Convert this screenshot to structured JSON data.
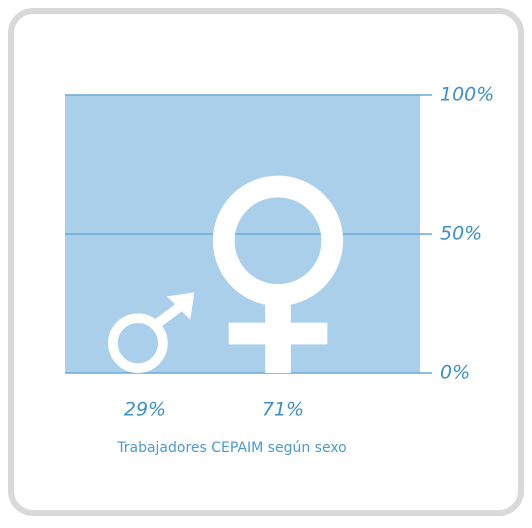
{
  "chart_data": {
    "type": "pictogram",
    "title": "Trabajadores CEPAIM según sexo",
    "values": [
      29,
      71
    ],
    "value_labels": [
      "29%",
      "71%"
    ],
    "ylim": [
      0,
      100
    ],
    "yticks": [
      {
        "value": 0,
        "label": "0%"
      },
      {
        "value": 50,
        "label": "50%"
      },
      {
        "value": 100,
        "label": "100%"
      }
    ],
    "grid": true,
    "color": "#ffffff",
    "background_color": "#a9cfeb",
    "grid_color": "#6aaad6"
  }
}
